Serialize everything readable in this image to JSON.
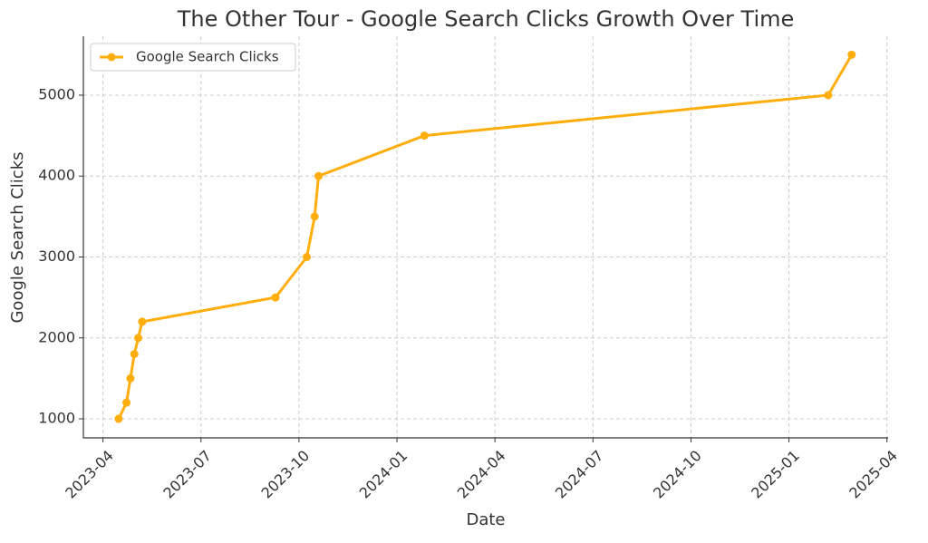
{
  "chart_data": {
    "type": "line",
    "title": "The Other Tour - Google Search Clicks Growth Over Time",
    "x_label": "Date",
    "y_label": "Google Search Clicks",
    "x": [
      2023.29,
      2023.31,
      2023.32,
      2023.33,
      2023.34,
      2023.35,
      2023.69,
      2023.77,
      2023.79,
      2023.8,
      2024.07,
      2025.1,
      2025.16
    ],
    "series": [
      {
        "name": "Google Search Clicks",
        "color": "#ffae0d",
        "values": [
          1000,
          1200,
          1500,
          1800,
          2000,
          2200,
          2500,
          3000,
          3500,
          4000,
          4500,
          5000,
          5500
        ]
      }
    ],
    "xlim": [
      2023.2,
      2025.253
    ],
    "xticks": [
      {
        "value": 2023.25,
        "label": "2023-04"
      },
      {
        "value": 2023.5,
        "label": "2023-07"
      },
      {
        "value": 2023.75,
        "label": "2023-10"
      },
      {
        "value": 2024.0,
        "label": "2024-01"
      },
      {
        "value": 2024.25,
        "label": "2024-04"
      },
      {
        "value": 2024.5,
        "label": "2024-07"
      },
      {
        "value": 2024.75,
        "label": "2024-10"
      },
      {
        "value": 2025.0,
        "label": "2025-01"
      },
      {
        "value": 2025.25,
        "label": "2025-04"
      }
    ],
    "ylim": [
      765,
      5728
    ],
    "yticks": [
      1000,
      2000,
      3000,
      4000,
      5000
    ],
    "grid": true,
    "legend": "upper left"
  }
}
